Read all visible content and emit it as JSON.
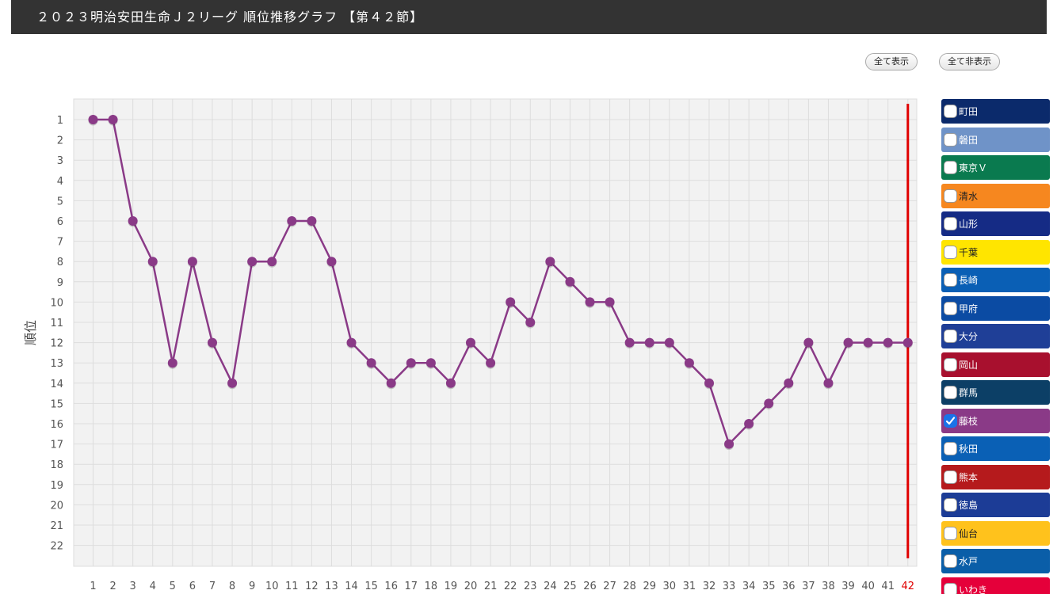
{
  "header": {
    "title": "２０２３明治安田生命Ｊ２リーグ 順位推移グラフ 【第４２節】"
  },
  "controls": {
    "show_all": "全て表示",
    "hide_all": "全て非表示"
  },
  "legend": {
    "teams": [
      {
        "name": "町田",
        "color": "#0b2a6b",
        "checked": false,
        "dark_text": false
      },
      {
        "name": "磐田",
        "color": "#6f93c8",
        "checked": false,
        "dark_text": false
      },
      {
        "name": "東京Ｖ",
        "color": "#0a7a4f",
        "checked": false,
        "dark_text": false
      },
      {
        "name": "清水",
        "color": "#f6871f",
        "checked": false,
        "dark_text": true
      },
      {
        "name": "山形",
        "color": "#152b85",
        "checked": false,
        "dark_text": false
      },
      {
        "name": "千葉",
        "color": "#ffe500",
        "checked": false,
        "dark_text": true
      },
      {
        "name": "長崎",
        "color": "#0a5fb5",
        "checked": false,
        "dark_text": false
      },
      {
        "name": "甲府",
        "color": "#0b4ba3",
        "checked": false,
        "dark_text": false
      },
      {
        "name": "大分",
        "color": "#1f3f97",
        "checked": false,
        "dark_text": false
      },
      {
        "name": "岡山",
        "color": "#a8102e",
        "checked": false,
        "dark_text": false
      },
      {
        "name": "群馬",
        "color": "#0c3f66",
        "checked": false,
        "dark_text": false
      },
      {
        "name": "藤枝",
        "color": "#8a3a87",
        "checked": true,
        "dark_text": false
      },
      {
        "name": "秋田",
        "color": "#0a60b5",
        "checked": false,
        "dark_text": false
      },
      {
        "name": "熊本",
        "color": "#b51a1c",
        "checked": false,
        "dark_text": false
      },
      {
        "name": "徳島",
        "color": "#1c3c96",
        "checked": false,
        "dark_text": false
      },
      {
        "name": "仙台",
        "color": "#ffc21c",
        "checked": false,
        "dark_text": true
      },
      {
        "name": "水戸",
        "color": "#0a5ea8",
        "checked": false,
        "dark_text": false
      },
      {
        "name": "いわき",
        "color": "#e5003a",
        "checked": false,
        "dark_text": false
      }
    ]
  },
  "chart_data": {
    "type": "line",
    "ylabel": "順位",
    "xlabel": "",
    "x": [
      1,
      2,
      3,
      4,
      5,
      6,
      7,
      8,
      9,
      10,
      11,
      12,
      13,
      14,
      15,
      16,
      17,
      18,
      19,
      20,
      21,
      22,
      23,
      24,
      25,
      26,
      27,
      28,
      29,
      30,
      31,
      32,
      33,
      34,
      35,
      36,
      37,
      38,
      39,
      40,
      41,
      42
    ],
    "ylim": [
      1,
      22
    ],
    "y_inverted": true,
    "grid": true,
    "current_round": 42,
    "current_round_color": "#e00000",
    "series": [
      {
        "name": "藤枝",
        "color": "#8a3a87",
        "values": [
          1,
          1,
          6,
          8,
          13,
          8,
          12,
          14,
          8,
          8,
          6,
          6,
          8,
          12,
          13,
          14,
          13,
          13,
          14,
          12,
          13,
          10,
          11,
          8,
          9,
          10,
          10,
          12,
          12,
          12,
          13,
          14,
          17,
          16,
          15,
          14,
          12,
          14,
          12,
          12,
          12,
          12
        ]
      }
    ]
  }
}
